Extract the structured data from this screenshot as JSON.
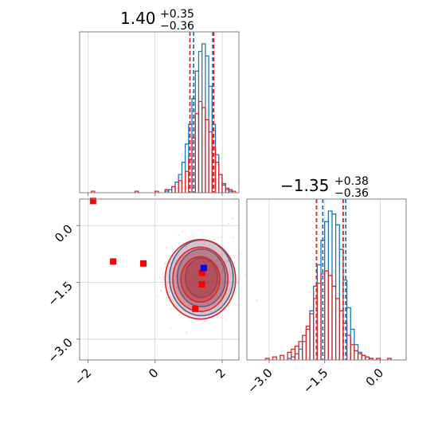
{
  "colors": {
    "blue": "#1f77b4",
    "red": "#d62728",
    "marker_red": "#ff0000",
    "marker_blue": "#0000ff",
    "grid": "#b0b0b0",
    "spine": "#808080"
  },
  "chart_data": [
    {
      "type": "histogram",
      "panel": "marginal-param-1",
      "title": {
        "value": "1.40",
        "plus": "+0.35",
        "minus": "−0.36"
      },
      "xlim": [
        -2.25,
        2.5
      ],
      "x_ticks": [
        -2,
        0,
        2
      ],
      "grid": true,
      "series": [
        {
          "color": "#1f77b4",
          "bin_centers": [
            0.35,
            0.45,
            0.55,
            0.65,
            0.75,
            0.85,
            0.95,
            1.05,
            1.15,
            1.25,
            1.35,
            1.45,
            1.55,
            1.65,
            1.75,
            1.85,
            1.95,
            2.05,
            2.15,
            2.25
          ],
          "values": [
            0.01,
            0.02,
            0.04,
            0.07,
            0.12,
            0.2,
            0.32,
            0.45,
            0.62,
            0.8,
            0.93,
            0.98,
            0.9,
            0.7,
            0.45,
            0.25,
            0.12,
            0.05,
            0.02,
            0.01
          ],
          "quantile_lines": [
            1.15,
            1.72
          ]
        },
        {
          "color": "#d62728",
          "bin_centers": [
            -1.85,
            -0.55,
            0.05,
            0.35,
            0.55,
            0.75,
            0.95,
            1.05,
            1.15,
            1.25,
            1.35,
            1.45,
            1.55,
            1.65,
            1.75,
            1.85,
            1.95,
            2.05,
            2.15,
            2.25,
            2.35
          ],
          "values": [
            0.01,
            0.01,
            0.01,
            0.02,
            0.04,
            0.08,
            0.14,
            0.22,
            0.36,
            0.52,
            0.6,
            0.56,
            0.48,
            0.4,
            0.3,
            0.2,
            0.12,
            0.06,
            0.03,
            0.02,
            0.01
          ],
          "quantile_lines": [
            1.04,
            1.75
          ]
        }
      ]
    },
    {
      "type": "histogram",
      "panel": "marginal-param-2",
      "title": {
        "value": "−1.35",
        "plus": "+0.38",
        "minus": "−0.36"
      },
      "xlim": [
        -3.6,
        0.7
      ],
      "x_ticks": [
        -3.0,
        -1.5,
        0.0
      ],
      "x_tick_labels": [
        "−3.0",
        "−1.5",
        "0.0"
      ],
      "grid": true,
      "series": [
        {
          "color": "#1f77b4",
          "bin_centers": [
            -2.45,
            -2.35,
            -2.25,
            -2.15,
            -2.05,
            -1.95,
            -1.85,
            -1.75,
            -1.65,
            -1.55,
            -1.45,
            -1.35,
            -1.25,
            -1.15,
            -1.05,
            -0.95,
            -0.85,
            -0.75,
            -0.65,
            -0.55,
            -0.45,
            -0.35,
            -0.25
          ],
          "values": [
            0.01,
            0.02,
            0.04,
            0.07,
            0.12,
            0.2,
            0.32,
            0.48,
            0.62,
            0.78,
            0.9,
            0.97,
            0.95,
            0.88,
            0.72,
            0.52,
            0.34,
            0.2,
            0.1,
            0.05,
            0.03,
            0.02,
            0.01
          ],
          "quantile_lines": [
            -1.55,
            -0.93
          ]
        },
        {
          "color": "#d62728",
          "bin_centers": [
            -3.05,
            -2.85,
            -2.65,
            -2.45,
            -2.35,
            -2.25,
            -2.15,
            -2.05,
            -1.95,
            -1.85,
            -1.75,
            -1.65,
            -1.55,
            -1.45,
            -1.35,
            -1.25,
            -1.15,
            -1.05,
            -0.95,
            -0.85,
            -0.75,
            -0.65,
            -0.55,
            -0.45,
            -0.35,
            -0.25,
            -0.05,
            0.25
          ],
          "values": [
            0.01,
            0.02,
            0.03,
            0.05,
            0.07,
            0.09,
            0.12,
            0.16,
            0.22,
            0.3,
            0.4,
            0.5,
            0.56,
            0.58,
            0.55,
            0.48,
            0.4,
            0.32,
            0.24,
            0.16,
            0.1,
            0.06,
            0.04,
            0.03,
            0.02,
            0.01,
            0.01,
            0.01
          ],
          "quantile_lines": [
            -1.72,
            -1.0
          ]
        }
      ]
    },
    {
      "type": "scatter",
      "panel": "joint-2d",
      "xlim": [
        -2.25,
        2.5
      ],
      "ylim": [
        -3.55,
        0.7
      ],
      "x_ticks": [
        -2,
        0,
        2
      ],
      "x_tick_labels": [
        "−2",
        "0",
        "2"
      ],
      "y_ticks": [
        0.0,
        -1.5,
        -3.0
      ],
      "y_tick_labels": [
        "0.0",
        "−1.5",
        "−3.0"
      ],
      "grid": true,
      "contours": [
        {
          "color": "#1f77b4",
          "center": [
            1.38,
            -1.38
          ],
          "radii": [
            [
              0.95,
              1.0
            ],
            [
              0.72,
              0.76
            ],
            [
              0.48,
              0.52
            ]
          ],
          "fill": true
        },
        {
          "color": "#d62728",
          "center": [
            1.35,
            -1.42
          ],
          "radii": [
            [
              1.05,
              1.05
            ],
            [
              0.82,
              0.85
            ],
            [
              0.58,
              0.6
            ]
          ],
          "fill": true
        }
      ],
      "red_markers": [
        [
          -1.85,
          0.65
        ],
        [
          -1.25,
          -0.95
        ],
        [
          -0.35,
          -1.0
        ],
        [
          1.4,
          -1.55
        ],
        [
          1.2,
          -2.2
        ],
        [
          1.4,
          -1.25
        ]
      ],
      "blue_markers": [
        [
          1.45,
          -1.12
        ]
      ]
    }
  ]
}
